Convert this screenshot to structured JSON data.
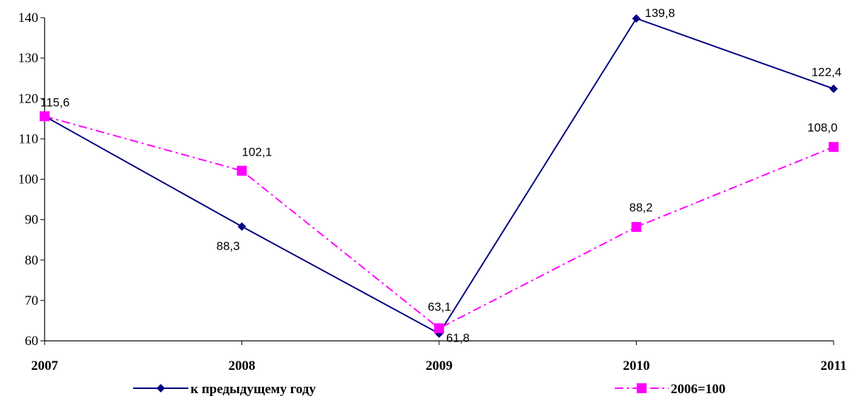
{
  "chart_data": {
    "type": "line",
    "categories": [
      "2007",
      "2008",
      "2009",
      "2010",
      "2011"
    ],
    "ylim": [
      60,
      140
    ],
    "yticks": [
      60,
      70,
      80,
      90,
      100,
      110,
      120,
      130,
      140
    ],
    "grid": false,
    "legend_position": "bottom",
    "series": [
      {
        "name": "к предыдущему году",
        "values": [
          115.6,
          88.3,
          61.8,
          139.8,
          122.4
        ],
        "labels": [
          "",
          "88,3",
          "61,8",
          "139,8",
          "122,4"
        ],
        "color": "#000080",
        "marker": "diamond",
        "line_style": "solid"
      },
      {
        "name": "2006=100",
        "values": [
          115.6,
          102.1,
          63.1,
          88.2,
          108.0
        ],
        "labels": [
          "115,6",
          "102,1",
          "63,1",
          "88,2",
          "108,0"
        ],
        "color": "#FF00FF",
        "marker": "square",
        "line_style": "dash-dot"
      }
    ]
  }
}
